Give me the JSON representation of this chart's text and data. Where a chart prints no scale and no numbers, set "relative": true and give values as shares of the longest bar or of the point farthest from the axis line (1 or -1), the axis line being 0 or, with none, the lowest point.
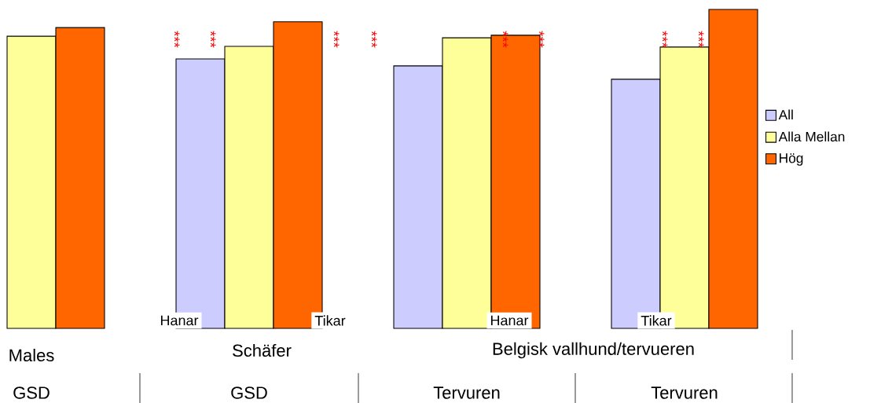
{
  "chart_data": {
    "type": "bar",
    "relative": true,
    "categories": [
      "GSD",
      "GSD",
      "Tervuren",
      "Tervuren"
    ],
    "series": [
      {
        "name": "All",
        "color": "#ccccff",
        "values": [
          null,
          0.845,
          0.823,
          0.781
        ]
      },
      {
        "name": "Alla Mellan",
        "color": "#ffff99",
        "values": [
          0.916,
          0.884,
          0.911,
          0.882
        ]
      },
      {
        "name": "Hög",
        "color": "#ff6600",
        "values": [
          0.943,
          0.961,
          0.919,
          1
        ]
      }
    ],
    "legend": "right",
    "annotations": [
      "Males",
      "Schäfer",
      "Belgisk vallhund/tervueren",
      "Hanar",
      "Tikar",
      "Hanar",
      "Tikar",
      "***",
      "***",
      "***",
      "***",
      "***",
      "***",
      "***",
      "***"
    ]
  }
}
